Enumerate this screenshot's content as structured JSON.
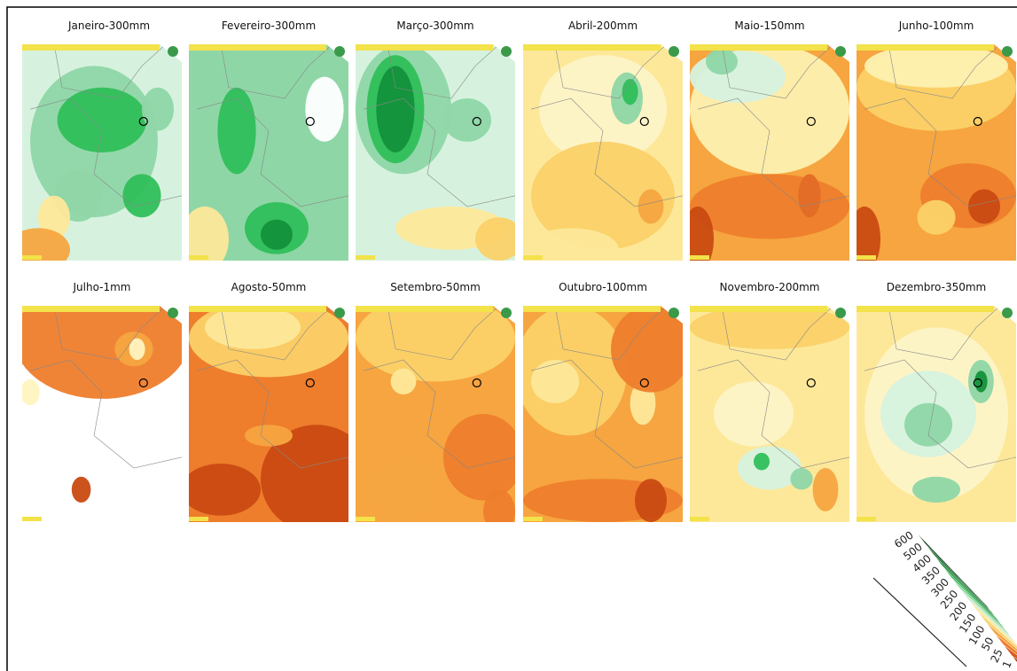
{
  "maps": [
    {
      "title": "Janeiro-300mm"
    },
    {
      "title": "Fevereiro-300mm"
    },
    {
      "title": "Março-300mm"
    },
    {
      "title": "Abril-200mm"
    },
    {
      "title": "Maio-150mm"
    },
    {
      "title": "Junho-100mm"
    },
    {
      "title": "Julho-1mm"
    },
    {
      "title": "Agosto-50mm"
    },
    {
      "title": "Setembro-50mm"
    },
    {
      "title": "Outubro-100mm"
    },
    {
      "title": "Novembro-200mm"
    },
    {
      "title": "Dezembro-350mm"
    }
  ],
  "legend": {
    "labels": [
      600,
      500,
      400,
      350,
      300,
      250,
      200,
      150,
      100,
      50,
      25,
      1
    ]
  }
}
